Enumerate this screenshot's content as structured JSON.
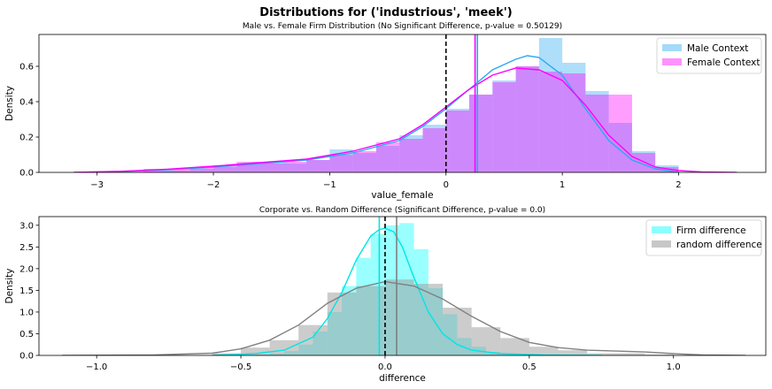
{
  "figure": {
    "suptitle": "Distributions for ('industrious', 'meek')"
  },
  "chart_data": [
    {
      "type": "bar",
      "subtype": "histogram-with-kde",
      "title": "Male vs. Female Firm Distribution (No Significant Difference, p-value = 0.50129)",
      "xlabel": "value_female",
      "ylabel": "Density",
      "xlim": [
        -3.5,
        2.75
      ],
      "ylim": [
        0,
        0.78
      ],
      "xticks": [
        -3,
        -2,
        -1,
        0,
        1,
        2
      ],
      "xtick_labels": [
        "−3",
        "−2",
        "−1",
        "0",
        "1",
        "2"
      ],
      "yticks": [
        0.0,
        0.2,
        0.4,
        0.6
      ],
      "ytick_labels": [
        "0.0",
        "0.2",
        "0.4",
        "0.6"
      ],
      "legend_position": "top-right",
      "bin_edges": [
        -3.2,
        -3.0,
        -2.8,
        -2.6,
        -2.4,
        -2.2,
        -2.0,
        -1.8,
        -1.6,
        -1.4,
        -1.2,
        -1.0,
        -0.8,
        -0.6,
        -0.4,
        -0.2,
        0.0,
        0.2,
        0.4,
        0.6,
        0.8,
        1.0,
        1.2,
        1.4,
        1.6,
        1.8,
        2.0
      ],
      "series": [
        {
          "name": "Male Context",
          "color": "#29a9f1",
          "fill_opacity": 0.38,
          "hist": [
            0.0,
            0.0,
            0.0,
            0.01,
            0.01,
            0.02,
            0.03,
            0.05,
            0.06,
            0.05,
            0.07,
            0.13,
            0.11,
            0.15,
            0.21,
            0.27,
            0.36,
            0.44,
            0.52,
            0.6,
            0.76,
            0.62,
            0.46,
            0.28,
            0.12,
            0.04,
            0.01
          ],
          "kde_x": [
            -3.2,
            -2.8,
            -2.4,
            -2.0,
            -1.6,
            -1.2,
            -0.8,
            -0.4,
            -0.2,
            0.0,
            0.2,
            0.4,
            0.6,
            0.7,
            0.8,
            1.0,
            1.2,
            1.4,
            1.6,
            1.8,
            2.0
          ],
          "kde_y": [
            0.0,
            0.005,
            0.015,
            0.03,
            0.05,
            0.07,
            0.11,
            0.18,
            0.26,
            0.36,
            0.47,
            0.58,
            0.64,
            0.66,
            0.65,
            0.55,
            0.36,
            0.18,
            0.07,
            0.02,
            0.0
          ],
          "mean_line_x": 0.27
        },
        {
          "name": "Female Context",
          "color": "#ff00ff",
          "fill_opacity": 0.38,
          "hist": [
            0.0,
            0.0,
            0.01,
            0.02,
            0.02,
            0.03,
            0.04,
            0.06,
            0.05,
            0.06,
            0.07,
            0.1,
            0.12,
            0.17,
            0.19,
            0.25,
            0.35,
            0.44,
            0.51,
            0.6,
            0.57,
            0.56,
            0.44,
            0.44,
            0.11,
            0.03,
            0.01
          ],
          "kde_x": [
            -3.2,
            -2.8,
            -2.4,
            -2.0,
            -1.6,
            -1.2,
            -0.8,
            -0.4,
            -0.2,
            0.0,
            0.2,
            0.4,
            0.6,
            0.8,
            1.0,
            1.2,
            1.4,
            1.6,
            1.8,
            2.0,
            2.2,
            2.5
          ],
          "kde_y": [
            0.0,
            0.006,
            0.018,
            0.035,
            0.055,
            0.075,
            0.12,
            0.19,
            0.27,
            0.37,
            0.47,
            0.55,
            0.59,
            0.58,
            0.52,
            0.38,
            0.21,
            0.09,
            0.03,
            0.01,
            0.003,
            0.0
          ],
          "mean_line_x": 0.25
        }
      ],
      "zero_line_x": 0.0
    },
    {
      "type": "bar",
      "subtype": "histogram-with-kde",
      "title": "Corporate vs. Random Difference (Significant Difference, p-value = 0.0)",
      "xlabel": "difference",
      "ylabel": "Density",
      "xlim": [
        -1.2,
        1.32
      ],
      "ylim": [
        0,
        3.2
      ],
      "xticks": [
        -1.0,
        -0.5,
        0.0,
        0.5,
        1.0
      ],
      "xtick_labels": [
        "−1.0",
        "−0.5",
        "0.0",
        "0.5",
        "1.0"
      ],
      "yticks": [
        0.0,
        0.5,
        1.0,
        1.5,
        2.0,
        2.5,
        3.0
      ],
      "ytick_labels": [
        "0.0",
        "0.5",
        "1.0",
        "1.5",
        "2.0",
        "2.5",
        "3.0"
      ],
      "legend_position": "top-right",
      "series": [
        {
          "name": "Firm difference",
          "color": "#00ffff",
          "line_color": "#00e5e5",
          "fill_opacity": 0.4,
          "bin_edges": [
            -0.45,
            -0.4,
            -0.35,
            -0.3,
            -0.25,
            -0.2,
            -0.15,
            -0.1,
            -0.05,
            0.0,
            0.05,
            0.1,
            0.15,
            0.2,
            0.25,
            0.3,
            0.35,
            0.4,
            0.45
          ],
          "hist": [
            0.02,
            0.05,
            0.1,
            0.25,
            0.55,
            1.0,
            1.6,
            2.25,
            2.8,
            3.0,
            3.05,
            2.45,
            1.55,
            0.95,
            0.4,
            0.2,
            0.08,
            0.03
          ],
          "kde_x": [
            -0.6,
            -0.45,
            -0.35,
            -0.25,
            -0.2,
            -0.15,
            -0.1,
            -0.05,
            -0.02,
            0.0,
            0.03,
            0.06,
            0.1,
            0.15,
            0.2,
            0.25,
            0.3,
            0.4,
            0.55,
            0.75
          ],
          "kde_y": [
            0.0,
            0.04,
            0.12,
            0.42,
            0.85,
            1.45,
            2.2,
            2.75,
            2.9,
            2.93,
            2.85,
            2.5,
            1.8,
            1.0,
            0.5,
            0.25,
            0.12,
            0.04,
            0.01,
            0.0
          ],
          "mean_line_x": -0.02
        },
        {
          "name": "random difference",
          "color": "#999999",
          "line_color": "#808080",
          "fill_opacity": 0.5,
          "bin_edges": [
            -0.6,
            -0.5,
            -0.4,
            -0.3,
            -0.2,
            -0.1,
            0.0,
            0.1,
            0.2,
            0.3,
            0.4,
            0.5,
            0.6,
            0.7,
            0.8,
            0.9,
            1.0
          ],
          "hist": [
            0.05,
            0.18,
            0.35,
            0.7,
            1.45,
            1.6,
            1.75,
            1.65,
            1.1,
            0.65,
            0.4,
            0.2,
            0.12,
            0.05,
            0.05,
            0.02
          ],
          "kde_x": [
            -1.12,
            -0.8,
            -0.6,
            -0.5,
            -0.4,
            -0.3,
            -0.2,
            -0.1,
            0.0,
            0.1,
            0.2,
            0.3,
            0.4,
            0.5,
            0.6,
            0.7,
            0.8,
            0.9,
            1.0,
            1.1,
            1.25
          ],
          "kde_y": [
            0.0,
            0.01,
            0.05,
            0.15,
            0.35,
            0.7,
            1.2,
            1.55,
            1.7,
            1.6,
            1.3,
            0.9,
            0.55,
            0.3,
            0.18,
            0.12,
            0.1,
            0.08,
            0.04,
            0.01,
            0.0
          ],
          "mean_line_x": 0.04
        }
      ],
      "zero_line_x": 0.0
    }
  ]
}
